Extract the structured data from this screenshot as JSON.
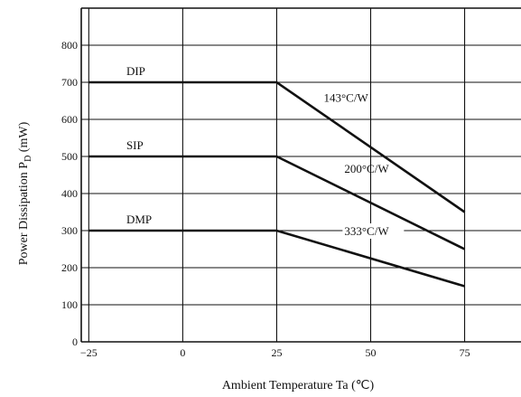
{
  "chart_data": {
    "type": "line",
    "title": "",
    "xlabel": "Ambient Temperature Ta (℃)",
    "ylabel": "Power Dissipation P (mW)",
    "ylabel_subscript": "D",
    "xlim": [
      -27,
      90
    ],
    "ylim": [
      0,
      900
    ],
    "x_ticks": [
      -25,
      0,
      25,
      50,
      75
    ],
    "x_tick_labels": [
      "−25",
      "0",
      "25",
      "50",
      "75"
    ],
    "y_ticks": [
      0,
      100,
      200,
      300,
      400,
      500,
      600,
      700,
      800
    ],
    "y_tick_labels": [
      "0",
      "100",
      "200",
      "300",
      "400",
      "500",
      "600",
      "700",
      "800"
    ],
    "x_gridlines": [
      -25,
      0,
      25,
      50,
      75
    ],
    "y_gridlines": [
      100,
      200,
      300,
      400,
      500,
      600,
      700,
      800
    ],
    "grid": true,
    "legend": "none",
    "series": [
      {
        "name": "DIP",
        "x": [
          -25,
          25,
          75
        ],
        "y": [
          700,
          700,
          350
        ]
      },
      {
        "name": "SIP",
        "x": [
          -25,
          25,
          75
        ],
        "y": [
          500,
          500,
          250
        ]
      },
      {
        "name": "DMP",
        "x": [
          -25,
          25,
          75
        ],
        "y": [
          300,
          300,
          150
        ]
      }
    ],
    "annotations": [
      {
        "text": "143°C/W",
        "series": "DIP"
      },
      {
        "text": "200°C/W",
        "series": "SIP"
      },
      {
        "text": "333°C/W",
        "series": "DMP"
      }
    ]
  }
}
